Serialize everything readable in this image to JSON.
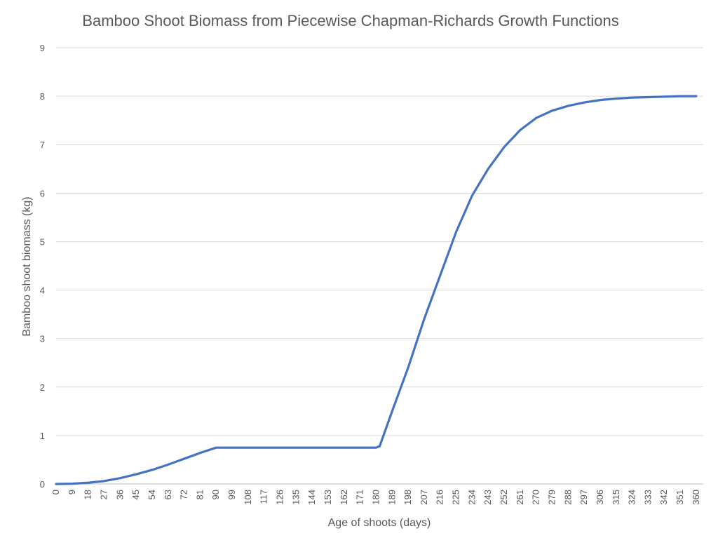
{
  "chart_data": {
    "type": "line",
    "title": "Bamboo Shoot Biomass from Piecewise Chapman-Richards Growth Functions",
    "xlabel": "Age of shoots (days)",
    "ylabel": "Bamboo shoot biomass (kg)",
    "xlim": [
      0,
      364
    ],
    "ylim": [
      0,
      9
    ],
    "y_ticks": [
      0,
      1,
      2,
      3,
      4,
      5,
      6,
      7,
      8,
      9
    ],
    "x_ticks": [
      0,
      9,
      18,
      27,
      36,
      45,
      54,
      63,
      72,
      81,
      90,
      99,
      108,
      117,
      126,
      135,
      144,
      153,
      162,
      171,
      180,
      189,
      198,
      207,
      216,
      225,
      234,
      243,
      252,
      261,
      270,
      279,
      288,
      297,
      306,
      315,
      324,
      333,
      342,
      351,
      360
    ],
    "grid": "horizontal",
    "legend": "none",
    "series_color": "#4472c4",
    "series": [
      {
        "name": "",
        "x": [
          0,
          9,
          18,
          27,
          36,
          45,
          54,
          63,
          72,
          81,
          90,
          99,
          108,
          117,
          126,
          135,
          144,
          153,
          162,
          171,
          180,
          182,
          189,
          198,
          207,
          216,
          225,
          234,
          243,
          252,
          261,
          270,
          279,
          288,
          297,
          306,
          315,
          324,
          333,
          342,
          351,
          360
        ],
        "y": [
          0,
          0.005,
          0.025,
          0.06,
          0.12,
          0.2,
          0.29,
          0.4,
          0.52,
          0.64,
          0.75,
          0.75,
          0.75,
          0.75,
          0.75,
          0.75,
          0.75,
          0.75,
          0.75,
          0.75,
          0.75,
          0.78,
          1.5,
          2.4,
          3.4,
          4.3,
          5.2,
          5.95,
          6.5,
          6.95,
          7.3,
          7.55,
          7.7,
          7.8,
          7.87,
          7.92,
          7.95,
          7.97,
          7.98,
          7.99,
          8.0,
          8.0
        ]
      }
    ]
  }
}
